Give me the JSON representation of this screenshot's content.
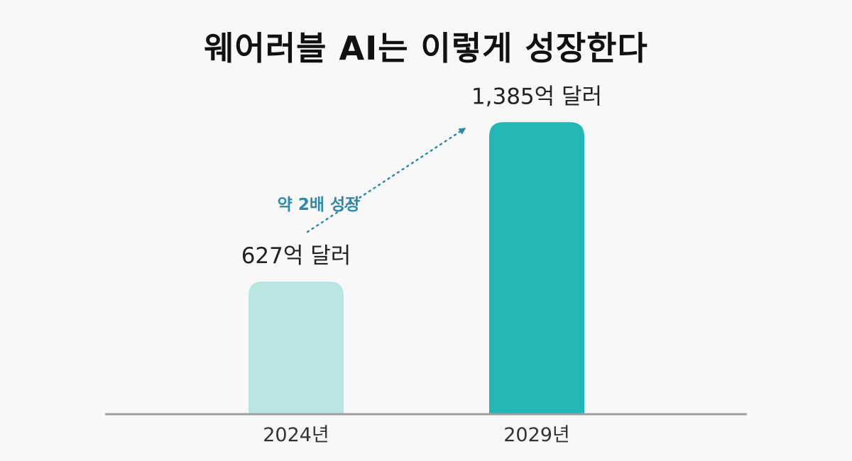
{
  "chart_data": {
    "type": "bar",
    "title": "웨어러블 AI는 이렇게 성장한다",
    "categories": [
      "2024년",
      "2029년"
    ],
    "values": [
      627,
      1385
    ],
    "data_labels": [
      "627억 달러",
      "1,385억 달러"
    ],
    "unit": "억 달러",
    "ylim": [
      0,
      1450
    ],
    "grid": false,
    "bar_colors": [
      "#b8e4e2",
      "#23b8b5"
    ],
    "axis_color": "#9e9e9e",
    "annotation": {
      "text": "약 2배 성장",
      "color": "#2e8aa8"
    }
  }
}
